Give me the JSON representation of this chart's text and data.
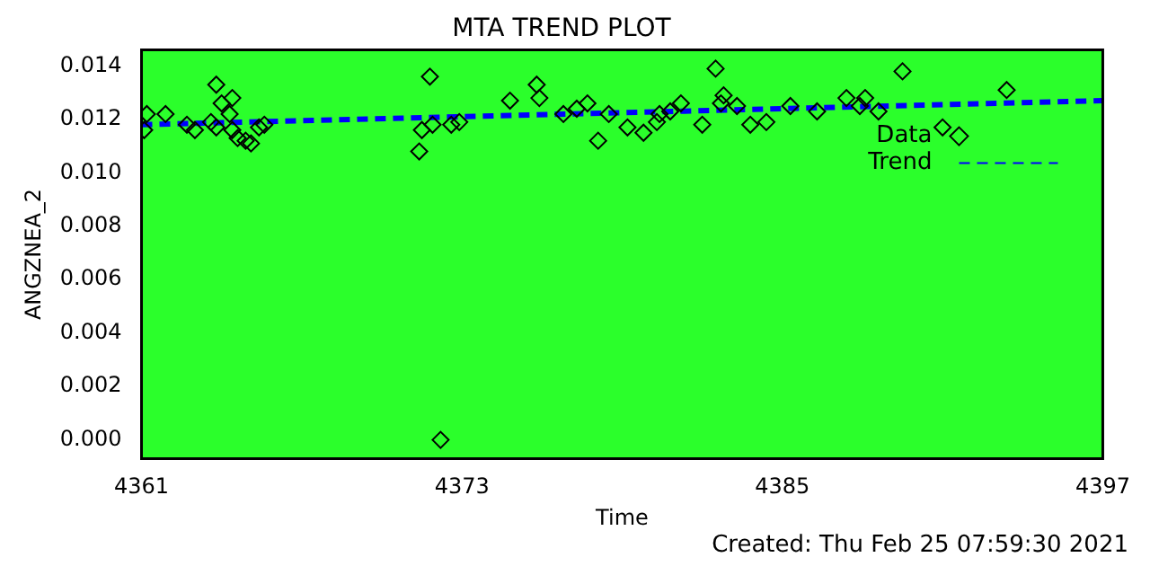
{
  "chart_data": {
    "type": "scatter",
    "title": "MTA TREND PLOT",
    "xlabel": "Time",
    "ylabel": "ANGZNEA_2",
    "annotations": [
      "Created: Thu Feb 25 07:59:30 2021"
    ],
    "xlim": [
      4361,
      4397
    ],
    "xticks": [
      4361,
      4373,
      4385,
      4397
    ],
    "ylim": [
      -0.0007,
      0.0146
    ],
    "yticks": [
      {
        "value": 0,
        "label": "0.000"
      },
      {
        "value": 0.002,
        "label": "0.002"
      },
      {
        "value": 0.004,
        "label": "0.004"
      },
      {
        "value": 0.006,
        "label": "0.006"
      },
      {
        "value": 0.008,
        "label": "0.008"
      },
      {
        "value": 0.01,
        "label": "0.010"
      },
      {
        "value": 0.012,
        "label": "0.012"
      },
      {
        "value": 0.014,
        "label": "0.014"
      }
    ],
    "grid": false,
    "legend": "top right",
    "series": [
      {
        "name": "Data",
        "marker": "diamond",
        "color": "#000000",
        "x": [
          4361.2,
          4361.1,
          4361.9,
          4362.7,
          4363.0,
          4363.6,
          4363.8,
          4364.0,
          4364.4,
          4364.3,
          4363.8,
          4364.4,
          4364.6,
          4364.9,
          4365.1,
          4365.4,
          4365.6,
          4371.4,
          4371.8,
          4371.5,
          4371.9,
          4372.2,
          4372.6,
          4372.9,
          4374.8,
          4375.8,
          4375.9,
          4376.8,
          4377.3,
          4377.7,
          4378.1,
          4378.5,
          4379.2,
          4379.8,
          4380.3,
          4380.4,
          4380.8,
          4381.2,
          4382.0,
          4382.5,
          4382.8,
          4382.7,
          4383.3,
          4383.8,
          4384.4,
          4385.3,
          4386.3,
          4387.4,
          4388.1,
          4387.9,
          4388.6,
          4389.5,
          4391.0,
          4393.4
        ],
        "values": [
          0.0122,
          0.0116,
          0.0122,
          0.0118,
          0.0116,
          0.0119,
          0.0133,
          0.0126,
          0.0128,
          0.0122,
          0.0117,
          0.0116,
          0.0113,
          0.0112,
          0.0111,
          0.0117,
          0.0118,
          0.0108,
          0.0136,
          0.0116,
          0.0118,
          0.0,
          0.0118,
          0.0119,
          0.0127,
          0.0133,
          0.0128,
          0.0122,
          0.0124,
          0.0126,
          0.0112,
          0.0122,
          0.0117,
          0.0115,
          0.0119,
          0.0122,
          0.0123,
          0.0126,
          0.0118,
          0.0139,
          0.0129,
          0.0126,
          0.0125,
          0.0118,
          0.0119,
          0.0125,
          0.0123,
          0.0128,
          0.0128,
          0.0125,
          0.0123,
          0.0138,
          0.0117,
          0.0131
        ]
      },
      {
        "name": "Trend",
        "type": "line",
        "line_style": "dashed",
        "color": "#0000ff",
        "x": [
          4361,
          4397
        ],
        "values": [
          0.0118,
          0.0127
        ]
      }
    ]
  }
}
